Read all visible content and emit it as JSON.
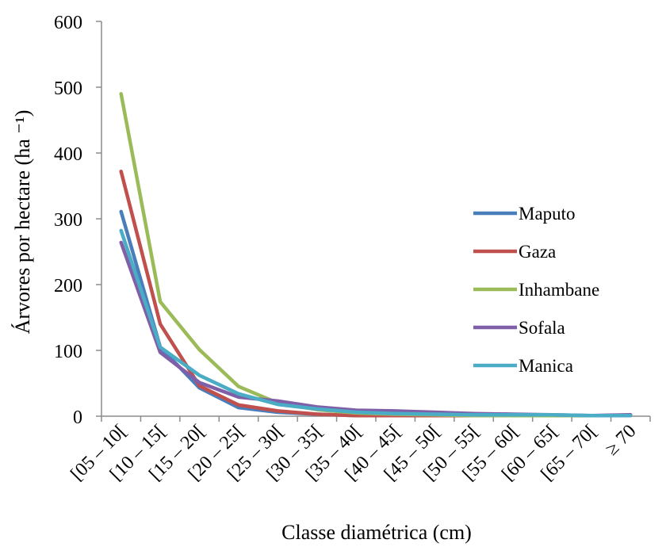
{
  "chart_data": {
    "type": "line",
    "xlabel": "Classe diamétrica (cm)",
    "ylabel": "Árvores por hectare (ha ⁻¹)",
    "ylim": [
      0,
      600
    ],
    "yticks": [
      0,
      100,
      200,
      300,
      400,
      500,
      600
    ],
    "categories": [
      "[05 – 10[",
      "[10 – 15[",
      "[15 – 20[",
      "[20 – 25[",
      "[25 – 30[",
      "[30 – 35[",
      "[35 – 40[",
      "[40 – 45[",
      "[45 – 50[",
      "[50 – 55[",
      "[55 – 60[",
      "[60 – 65[",
      "[65 – 70[",
      "≥ 70"
    ],
    "legend_position": "right",
    "grid": false,
    "series": [
      {
        "name": "Maputo",
        "color": "#4a7ebb",
        "values": [
          311,
          105,
          43,
          13,
          6,
          3,
          1,
          1,
          1,
          1,
          1,
          1,
          1,
          1
        ]
      },
      {
        "name": "Gaza",
        "color": "#c0504d",
        "values": [
          372,
          140,
          46,
          17,
          8,
          3,
          1,
          1,
          1,
          1,
          1,
          1,
          1,
          1
        ]
      },
      {
        "name": "Inhambane",
        "color": "#9bbb59",
        "values": [
          490,
          174,
          101,
          45,
          20,
          10,
          5,
          3,
          2,
          1,
          1,
          1,
          1,
          1
        ]
      },
      {
        "name": "Sofala",
        "color": "#7f5fa8",
        "values": [
          264,
          97,
          51,
          29,
          23,
          14,
          9,
          8,
          6,
          4,
          3,
          2,
          1,
          2
        ]
      },
      {
        "name": "Manica",
        "color": "#4bacc6",
        "values": [
          282,
          105,
          62,
          34,
          18,
          11,
          6,
          4,
          3,
          2,
          2,
          2,
          1,
          1
        ]
      }
    ]
  }
}
